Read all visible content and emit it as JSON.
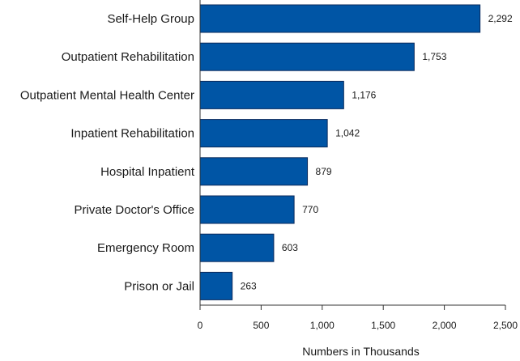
{
  "chart_data": {
    "type": "bar",
    "orientation": "horizontal",
    "categories": [
      "Self-Help Group",
      "Outpatient Rehabilitation",
      "Outpatient Mental Health Center",
      "Inpatient Rehabilitation",
      "Hospital Inpatient",
      "Private Doctor's Office",
      "Emergency Room",
      "Prison or Jail"
    ],
    "values": [
      2292,
      1753,
      1176,
      1042,
      879,
      770,
      603,
      263
    ],
    "value_labels": [
      "2,292",
      "1,753",
      "1,176",
      "1,042",
      "879",
      "770",
      "603",
      "263"
    ],
    "xlabel": "Numbers in Thousands",
    "ylabel": "",
    "title": "",
    "xlim": [
      0,
      2500
    ],
    "xticks": [
      0,
      500,
      1000,
      1500,
      2000,
      2500
    ],
    "xtick_labels": [
      "0",
      "500",
      "1,000",
      "1,500",
      "2,000",
      "2,500"
    ],
    "grid": false,
    "bar_color": "#0055a5",
    "bar_edge_color": "#0a2a5c"
  }
}
